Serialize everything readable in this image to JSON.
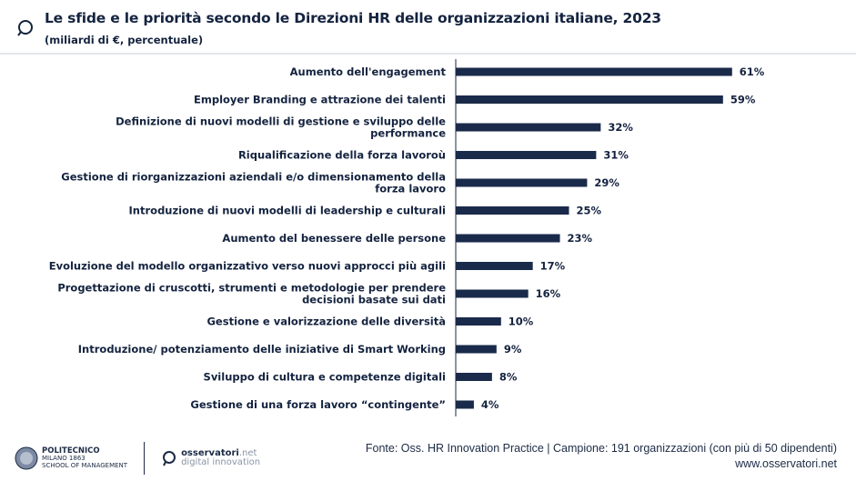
{
  "header": {
    "title": "Le sfide e le priorità secondo le Direzioni HR delle organizzazioni italiane, 2023",
    "subtitle": "(miliardi di €, percentuale)",
    "icon": "magnifier-icon"
  },
  "chart_data": {
    "type": "bar",
    "orientation": "horizontal",
    "title": "Le sfide e le priorità secondo le Direzioni HR delle organizzazioni italiane, 2023",
    "subtitle": "(miliardi di €, percentuale)",
    "categories": [
      [
        "Aumento dell'engagement"
      ],
      [
        "Employer Branding e attrazione dei talenti"
      ],
      [
        "Definizione di nuovi modelli di gestione e sviluppo delle",
        "performance"
      ],
      [
        "Riqualificazione della forza lavoroù"
      ],
      [
        "Gestione di riorganizzazioni aziendali e/o dimensionamento della",
        "forza lavoro"
      ],
      [
        "Introduzione di nuovi modelli di leadership e culturali"
      ],
      [
        "Aumento del benessere delle persone"
      ],
      [
        "Evoluzione del modello organizzativo verso nuovi approcci più agili"
      ],
      [
        "Progettazione di cruscotti, strumenti e metodologie per prendere",
        "decisioni basate sui dati"
      ],
      [
        "Gestione e valorizzazione delle diversità"
      ],
      [
        "Introduzione/ potenziamento delle iniziative di Smart Working"
      ],
      [
        "Sviluppo di cultura e competenze digitali"
      ],
      [
        "Gestione di una forza lavoro “contingente”"
      ]
    ],
    "values": [
      61,
      59,
      32,
      31,
      29,
      25,
      23,
      17,
      16,
      10,
      9,
      8,
      4
    ],
    "value_labels": [
      "61%",
      "59%",
      "32%",
      "31%",
      "29%",
      "25%",
      "23%",
      "17%",
      "16%",
      "10%",
      "9%",
      "8%",
      "4%"
    ],
    "unit": "%",
    "grid": false,
    "bar_color": "#1a2a4a"
  },
  "footer": {
    "source": "Fonte: Oss. HR Innovation Practice | Campione: 191 organizzazioni (con più di 50 dipendenti)",
    "website": "www.osservatori.net",
    "logo_polimi": [
      "POLITECNICO",
      "MILANO 1863",
      "SCHOOL OF MANAGEMENT"
    ],
    "logo_osservatori": [
      "osservatori",
      ".net",
      "digital innovation"
    ]
  }
}
